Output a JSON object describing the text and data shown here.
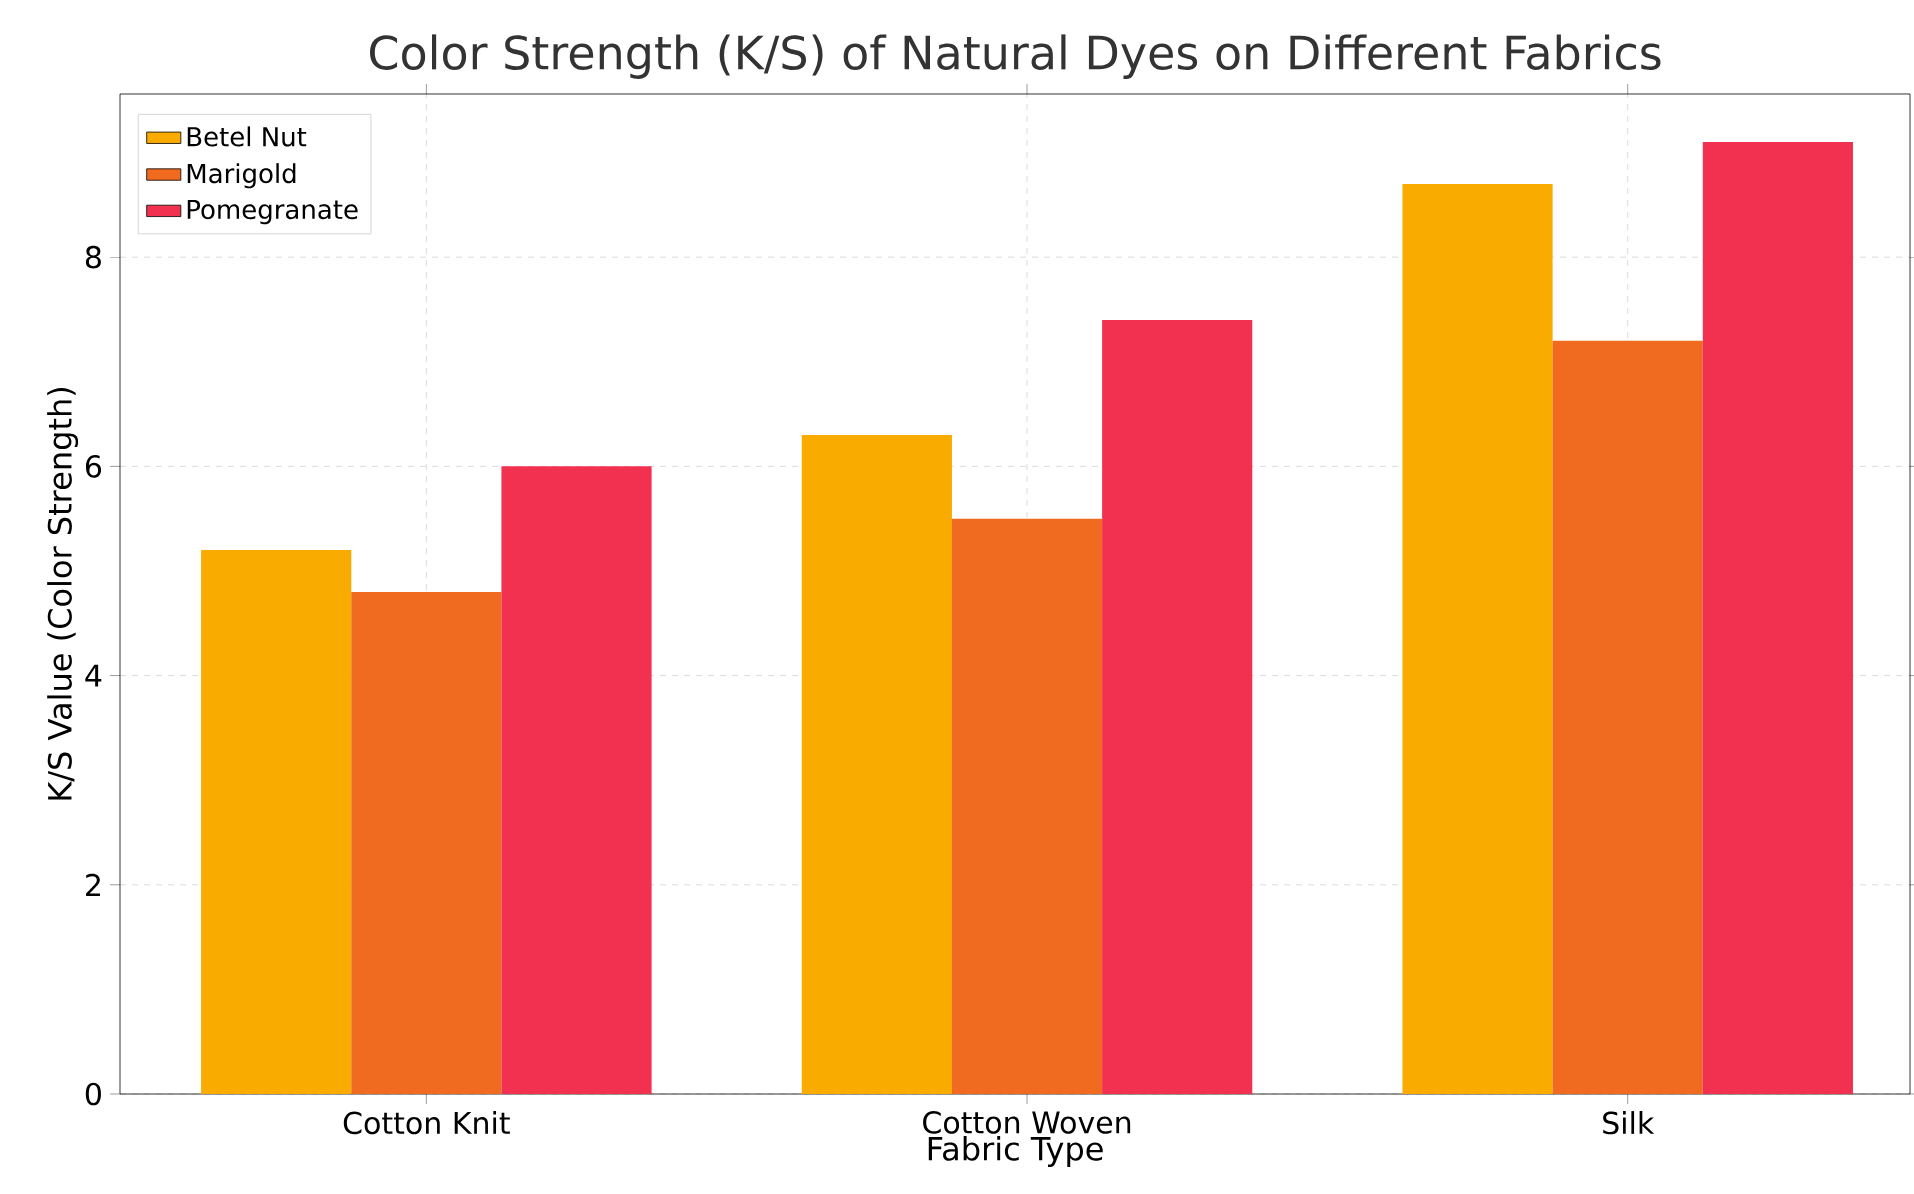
{
  "chart_data": {
    "type": "bar",
    "title": "Color Strength (K/S) of Natural Dyes on Different Fabrics",
    "xlabel": "Fabric Type",
    "ylabel": "K/S Value (Color Strength)",
    "categories": [
      "Cotton Knit",
      "Cotton Woven",
      "Silk"
    ],
    "series": [
      {
        "name": "Betel Nut",
        "color": "#f9ab00",
        "values": [
          5.2,
          6.3,
          8.7
        ]
      },
      {
        "name": "Marigold",
        "color": "#f06a20",
        "values": [
          4.8,
          5.5,
          7.2
        ]
      },
      {
        "name": "Pomegranate",
        "color": "#f23050",
        "values": [
          6.0,
          7.4,
          9.1
        ]
      }
    ],
    "ylim": [
      0,
      9.56
    ],
    "yticks": [
      0,
      2,
      4,
      6,
      8
    ],
    "grid": true,
    "legend": "top left"
  }
}
